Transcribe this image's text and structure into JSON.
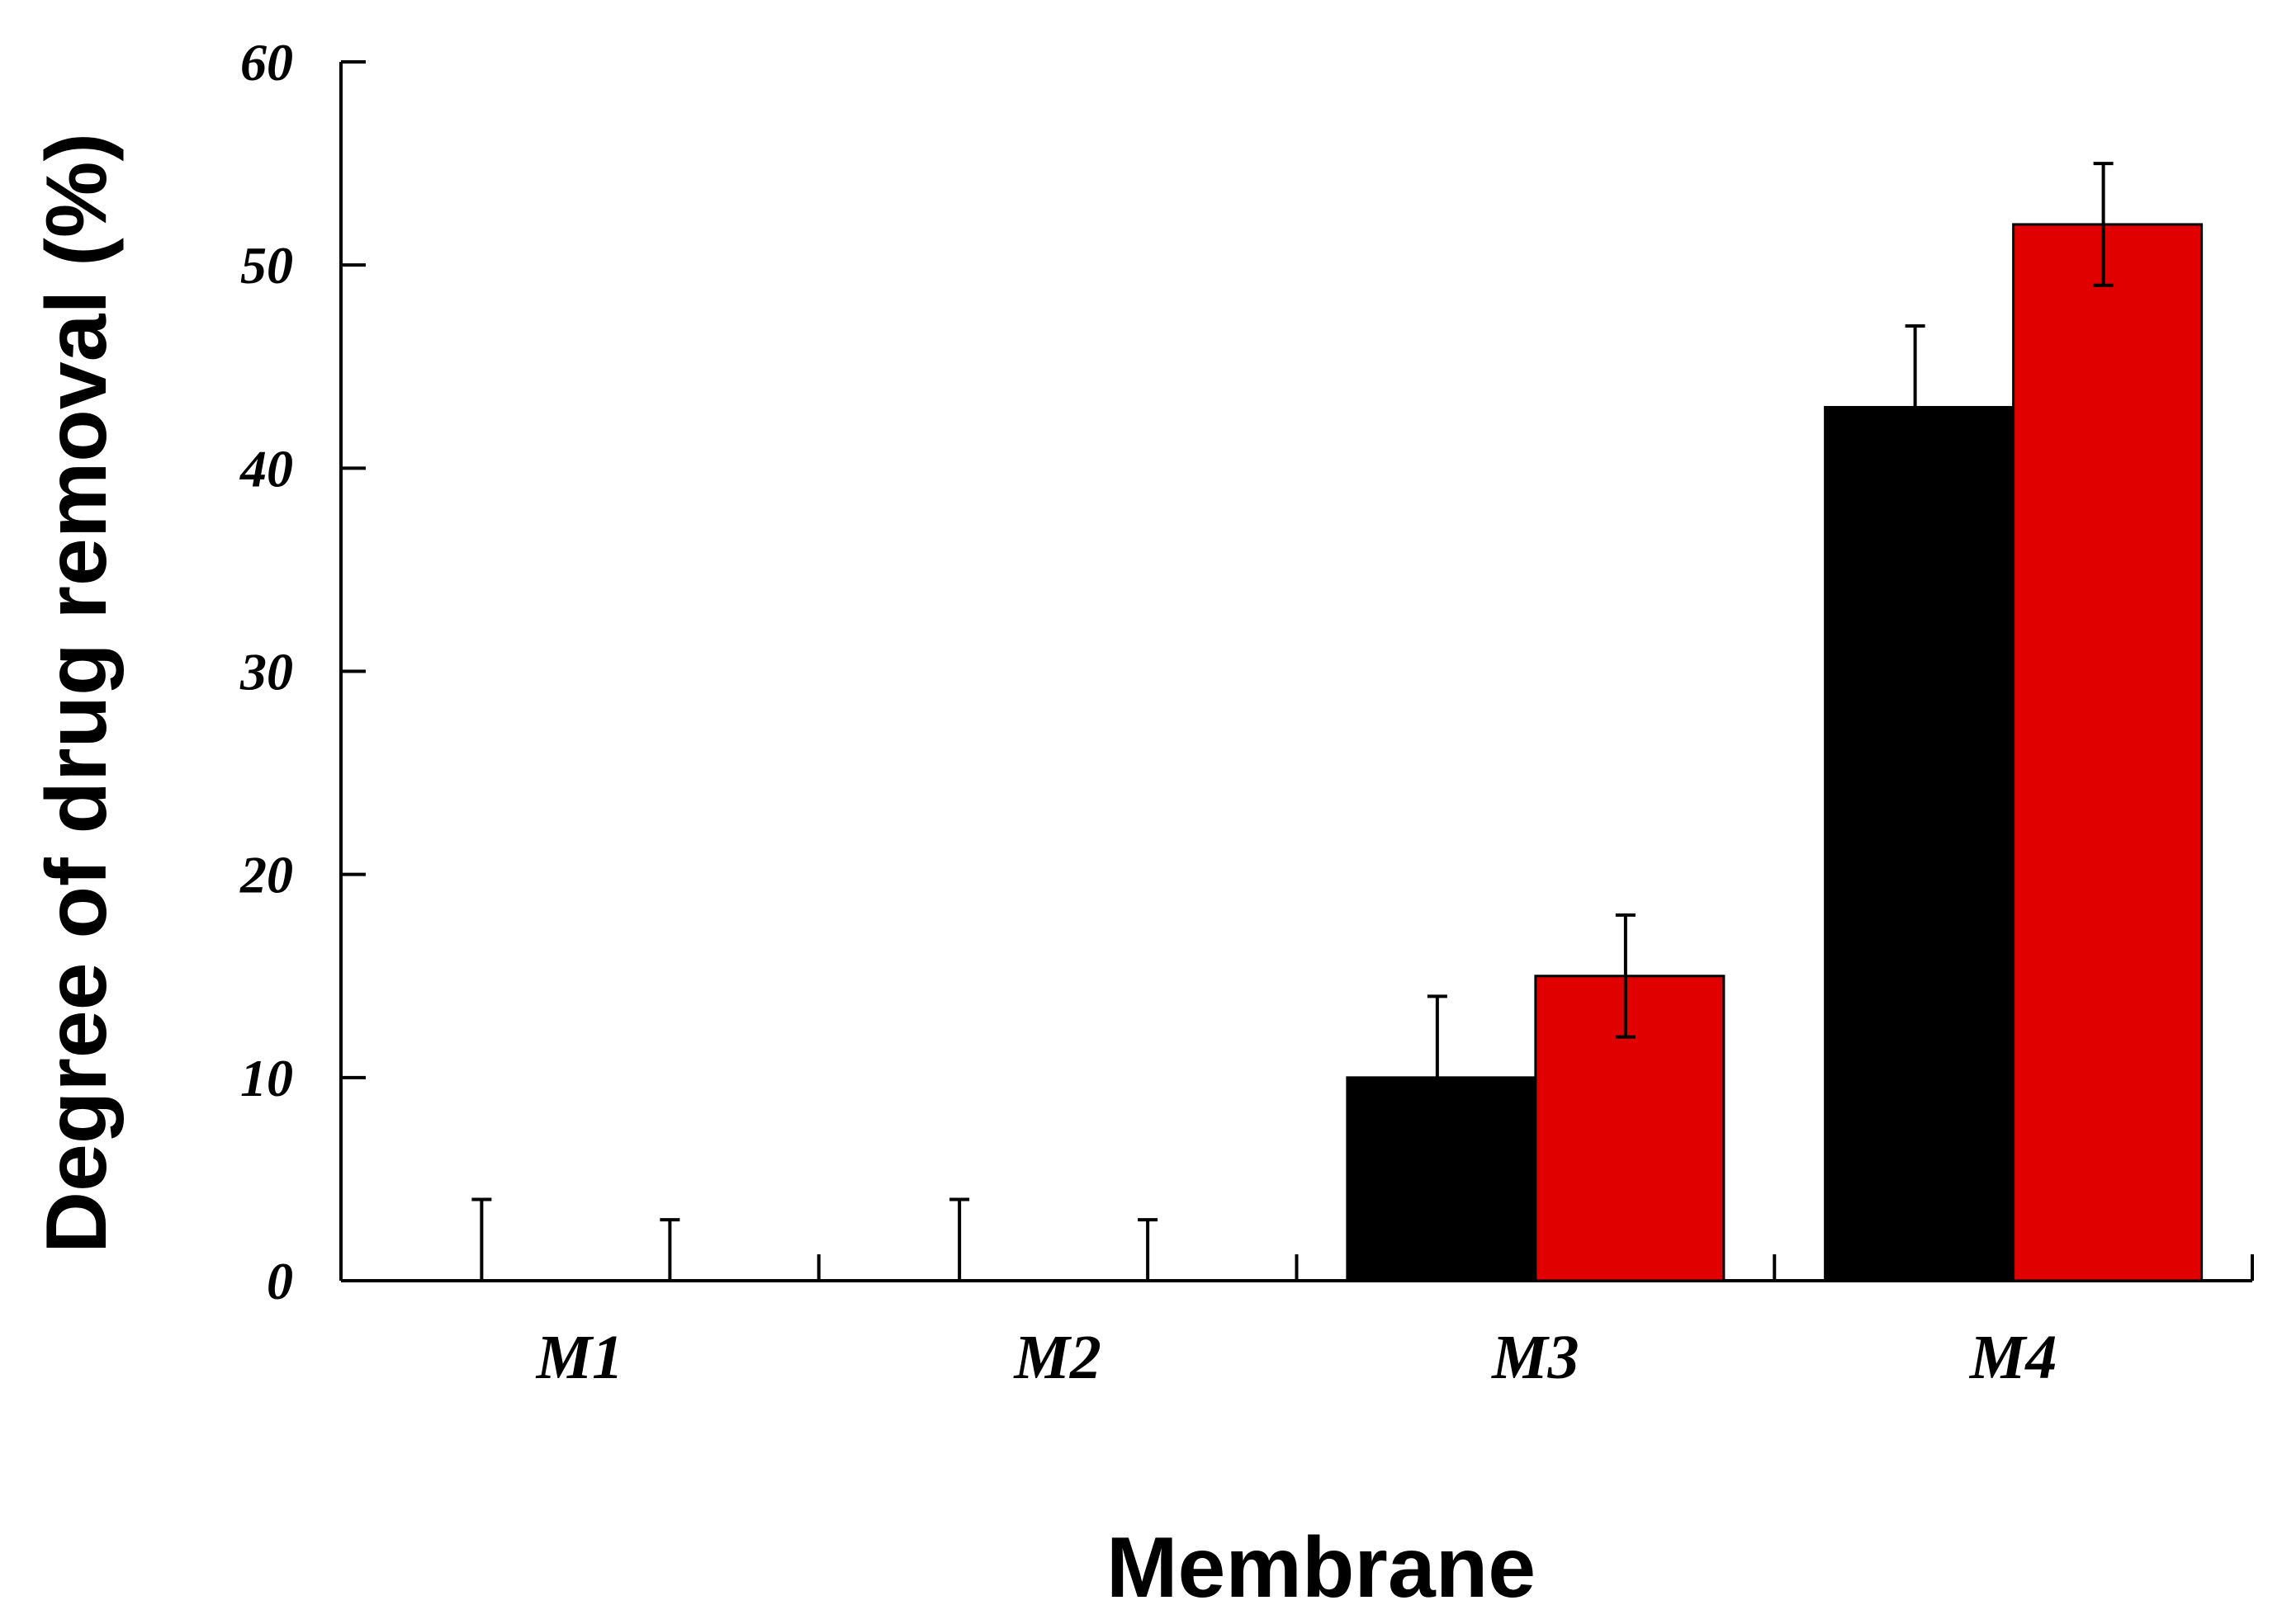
{
  "chart_data": {
    "type": "bar",
    "title": "",
    "xlabel": "Membrane",
    "ylabel": "Degree of drug removal (%)",
    "categories": [
      "M1",
      "M2",
      "M3",
      "M4"
    ],
    "ylim": [
      0,
      60
    ],
    "yticks": [
      "0",
      "10",
      "20",
      "30",
      "40",
      "50",
      "60"
    ],
    "grid": false,
    "legend": "none",
    "series": [
      {
        "color": "#000000",
        "values": [
          0,
          0,
          10,
          43
        ],
        "errors": [
          4,
          4,
          4,
          4
        ]
      },
      {
        "color": "#e00000",
        "values": [
          0,
          0,
          15,
          52
        ],
        "errors": [
          3,
          3,
          3,
          3
        ]
      }
    ]
  }
}
